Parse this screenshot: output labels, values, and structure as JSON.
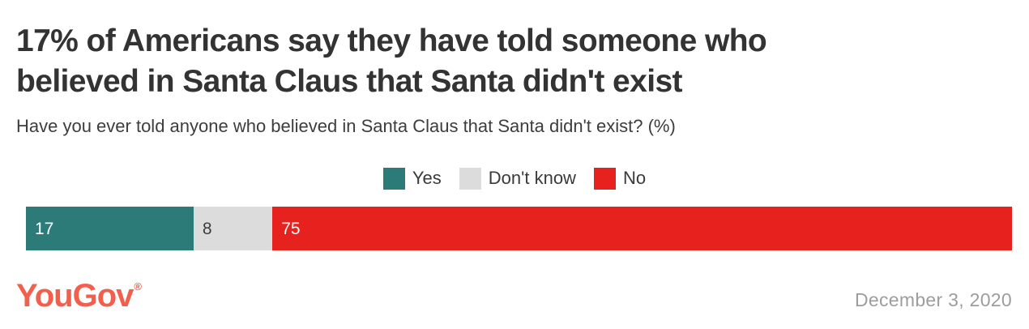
{
  "header": {
    "title": "17% of Americans say they have told someone who believed in Santa Claus that Santa didn't exist",
    "title_lines": [
      "17% of Americans say they have told someone who",
      "believed in Santa Claus that Santa didn't exist"
    ],
    "subtitle": "Have you ever told anyone who believed in Santa Claus that Santa didn't exist? (%)"
  },
  "chart_data": {
    "type": "bar",
    "variant": "horizontal-stacked-percentage",
    "title": "17% of Americans say they have told someone who believed in Santa Claus that Santa didn't exist",
    "question": "Have you ever told anyone who believed in Santa Claus that Santa didn't exist? (%)",
    "categories": [
      "Yes",
      "Don't know",
      "No"
    ],
    "values": [
      17,
      8,
      75
    ],
    "unit": "%",
    "colors": [
      "#2d7b79",
      "#dcdcdc",
      "#e7211d"
    ],
    "value_label_colors": [
      "#ffffff",
      "#3d3d3d",
      "#ffffff"
    ],
    "legend_position": "top-center",
    "xlim": [
      0,
      100
    ],
    "grid": false
  },
  "footer": {
    "logo_text": "YouGov",
    "logo_registered_mark": "®",
    "logo_color": "#f2604d",
    "date": "December 3, 2020"
  }
}
